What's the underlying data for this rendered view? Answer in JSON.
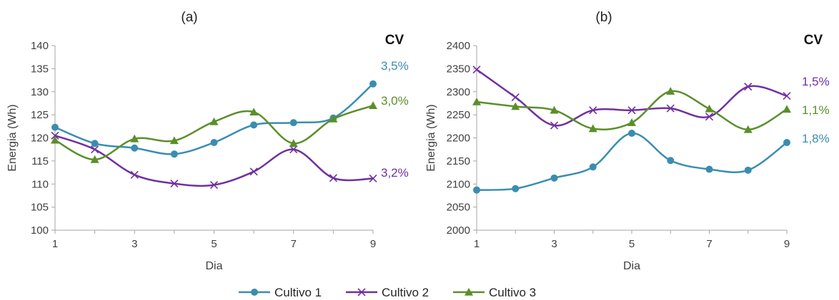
{
  "legend": [
    {
      "name": "Cultivo 1",
      "color": "#3A8DB0",
      "marker": "circle"
    },
    {
      "name": "Cultivo 2",
      "color": "#7030A0",
      "marker": "x"
    },
    {
      "name": "Cultivo 3",
      "color": "#5B8F2A",
      "marker": "triangle"
    }
  ],
  "chart_data": [
    {
      "type": "line",
      "title": "(a)",
      "cv_header": "CV",
      "xlabel": "Dia",
      "ylabel": "Energia (Wh)",
      "x": [
        1,
        2,
        3,
        4,
        5,
        6,
        7,
        8,
        9
      ],
      "xticks": [
        "1",
        "3",
        "5",
        "7",
        "9"
      ],
      "ylim": [
        100,
        140
      ],
      "yticks": [
        "100",
        "105",
        "110",
        "115",
        "120",
        "125",
        "130",
        "135",
        "140"
      ],
      "series": [
        {
          "name": "Cultivo 1",
          "values": [
            122.3,
            118.8,
            117.8,
            116.5,
            119.0,
            122.8,
            123.3,
            124.3,
            131.7
          ],
          "cv": "3,5%"
        },
        {
          "name": "Cultivo 2",
          "values": [
            120.5,
            117.5,
            112.0,
            110.1,
            109.8,
            112.7,
            117.5,
            111.3,
            111.2
          ],
          "cv": "3,2%"
        },
        {
          "name": "Cultivo 3",
          "values": [
            119.5,
            115.3,
            119.8,
            119.4,
            123.5,
            125.6,
            118.8,
            124.1,
            127.0
          ],
          "cv": "3,0%"
        }
      ]
    },
    {
      "type": "line",
      "title": "(b)",
      "cv_header": "CV",
      "xlabel": "Dia",
      "ylabel": "Energia (Wh)",
      "x": [
        1,
        2,
        3,
        4,
        5,
        6,
        7,
        8,
        9
      ],
      "xticks": [
        "1",
        "3",
        "5",
        "7",
        "9"
      ],
      "ylim": [
        2000,
        2400
      ],
      "yticks": [
        "2000",
        "2050",
        "2100",
        "2150",
        "2200",
        "2250",
        "2300",
        "2350",
        "2400"
      ],
      "series": [
        {
          "name": "Cultivo 1",
          "values": [
            2087,
            2090,
            2113,
            2137,
            2210,
            2151,
            2132,
            2130,
            2190
          ],
          "cv": "1,8%"
        },
        {
          "name": "Cultivo 2",
          "values": [
            2348,
            2288,
            2227,
            2260,
            2260,
            2264,
            2246,
            2311,
            2291
          ],
          "cv": "1,5%"
        },
        {
          "name": "Cultivo 3",
          "values": [
            2278,
            2268,
            2260,
            2220,
            2233,
            2301,
            2263,
            2218,
            2262
          ],
          "cv": "1,1%"
        }
      ]
    }
  ]
}
